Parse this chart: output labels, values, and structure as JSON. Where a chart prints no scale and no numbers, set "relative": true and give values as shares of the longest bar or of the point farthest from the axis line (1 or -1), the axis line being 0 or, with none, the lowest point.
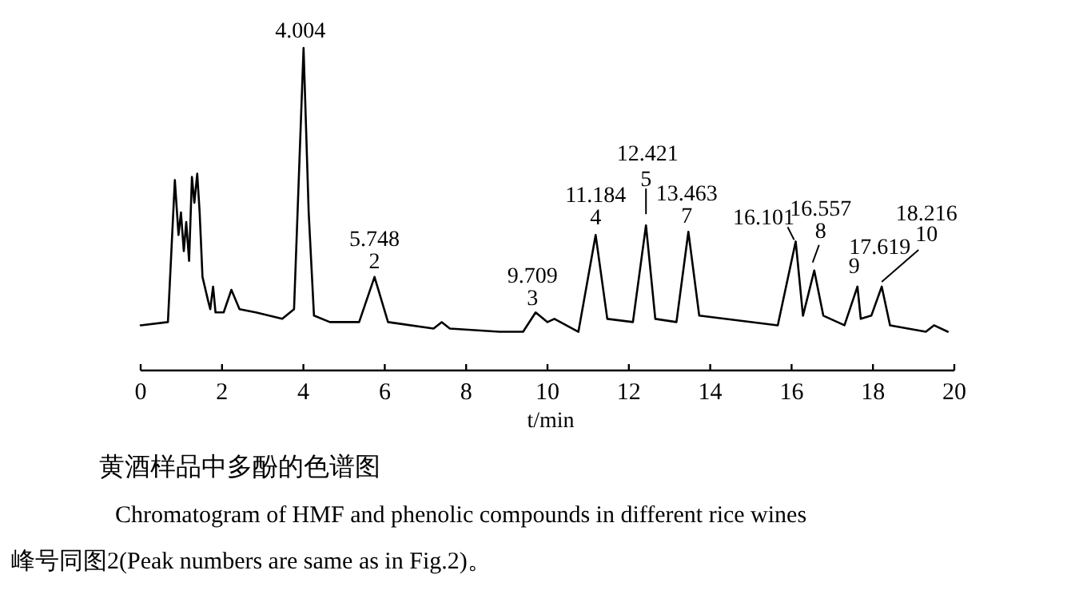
{
  "chart_data": {
    "type": "line",
    "relative": true,
    "title": "黄酒样品中多酚的色谱图",
    "subtitle": "Chromatogram of HMF and phenolic compounds in different rice wines",
    "xlabel": "t/min",
    "xlim": [
      0,
      20
    ],
    "xticks": [
      0,
      2,
      4,
      6,
      8,
      10,
      12,
      14,
      16,
      18,
      20
    ],
    "line_style": "solid",
    "marker": "none",
    "series": [
      {
        "color": "#000000",
        "x": [
          0.0,
          0.67,
          0.84,
          0.93,
          0.99,
          1.06,
          1.12,
          1.19,
          1.26,
          1.32,
          1.39,
          1.45,
          1.52,
          1.65,
          1.71,
          1.78,
          1.84,
          2.04,
          2.23,
          2.43,
          2.83,
          3.48,
          3.77,
          4.004,
          4.13,
          4.26,
          4.65,
          5.37,
          5.748,
          6.08,
          7.2,
          7.4,
          7.6,
          8.82,
          9.4,
          9.709,
          10.0,
          10.17,
          10.76,
          11.184,
          11.47,
          12.1,
          12.421,
          12.65,
          13.17,
          13.463,
          13.73,
          15.66,
          16.101,
          16.28,
          16.557,
          16.78,
          17.3,
          17.619,
          17.7,
          17.96,
          18.216,
          18.42,
          19.3,
          19.5,
          19.84
        ],
        "values": [
          0.14,
          0.15,
          0.59,
          0.42,
          0.49,
          0.37,
          0.46,
          0.34,
          0.6,
          0.52,
          0.61,
          0.49,
          0.29,
          0.22,
          0.19,
          0.26,
          0.18,
          0.18,
          0.25,
          0.19,
          0.18,
          0.16,
          0.19,
          1.0,
          0.49,
          0.17,
          0.15,
          0.15,
          0.29,
          0.15,
          0.13,
          0.15,
          0.13,
          0.12,
          0.12,
          0.18,
          0.15,
          0.16,
          0.12,
          0.42,
          0.16,
          0.15,
          0.45,
          0.16,
          0.15,
          0.43,
          0.17,
          0.14,
          0.4,
          0.17,
          0.31,
          0.17,
          0.14,
          0.26,
          0.16,
          0.17,
          0.26,
          0.14,
          0.12,
          0.14,
          0.12
        ]
      }
    ],
    "annotations": [
      {
        "text": "4.004",
        "x": 4.004,
        "y": 1.0
      },
      {
        "text": "5.748",
        "x": 5.748,
        "y": 0.29
      },
      {
        "text": "2",
        "x": 5.748,
        "y": 0.29
      },
      {
        "text": "9.709",
        "x": 9.709,
        "y": 0.18
      },
      {
        "text": "3",
        "x": 9.709,
        "y": 0.18
      },
      {
        "text": "11.184",
        "x": 11.184,
        "y": 0.42
      },
      {
        "text": "4",
        "x": 11.184,
        "y": 0.42
      },
      {
        "text": "12.421",
        "x": 12.421,
        "y": 0.45
      },
      {
        "text": "5",
        "x": 12.421,
        "y": 0.45
      },
      {
        "text": "13.463",
        "x": 13.463,
        "y": 0.43
      },
      {
        "text": "7",
        "x": 13.463,
        "y": 0.43
      },
      {
        "text": "16.101",
        "x": 16.101,
        "y": 0.4
      },
      {
        "text": "16.557",
        "x": 16.557,
        "y": 0.31
      },
      {
        "text": "8",
        "x": 16.557,
        "y": 0.31
      },
      {
        "text": "17.619",
        "x": 17.619,
        "y": 0.26
      },
      {
        "text": "9",
        "x": 17.619,
        "y": 0.26
      },
      {
        "text": "18.216",
        "x": 18.216,
        "y": 0.26
      },
      {
        "text": "10",
        "x": 18.216,
        "y": 0.26
      },
      "峰号同图2(Peak numbers are same as in Fig.2)。"
    ]
  }
}
